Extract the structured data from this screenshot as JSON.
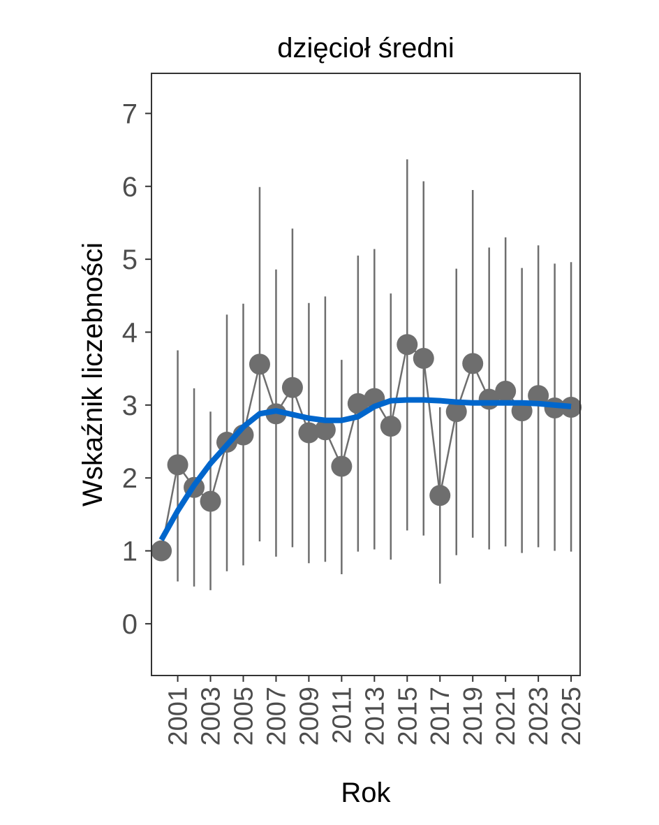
{
  "chart_data": {
    "type": "line",
    "title": "dzięcioł średni",
    "xlabel": "Rok",
    "ylabel": "Wskaźnik liczebności",
    "xlim": [
      1999.4,
      2025.55
    ],
    "ylim": [
      -0.71,
      7.55
    ],
    "yticks": [
      0,
      1,
      2,
      3,
      4,
      5,
      6,
      7
    ],
    "xticks": [
      2001,
      2003,
      2005,
      2007,
      2009,
      2011,
      2013,
      2015,
      2017,
      2019,
      2021,
      2023,
      2025
    ],
    "grid": false,
    "colors": {
      "points": "#6e6e6e",
      "trend": "#0066cc",
      "axis_text": "#4d4d4d"
    },
    "series": [
      {
        "name": "index",
        "x": [
          2000,
          2001,
          2002,
          2003,
          2004,
          2005,
          2006,
          2007,
          2008,
          2009,
          2010,
          2011,
          2012,
          2013,
          2014,
          2015,
          2016,
          2017,
          2018,
          2019,
          2020,
          2021,
          2022,
          2023,
          2024,
          2025
        ],
        "y": [
          1.0,
          2.18,
          1.87,
          1.68,
          2.49,
          2.59,
          3.56,
          2.88,
          3.24,
          2.62,
          2.66,
          2.16,
          3.02,
          3.09,
          2.71,
          3.83,
          3.64,
          1.76,
          2.91,
          3.57,
          3.08,
          3.19,
          2.92,
          3.13,
          2.96,
          2.97
        ],
        "upper": [
          1.0,
          3.75,
          3.23,
          2.91,
          4.24,
          4.39,
          5.99,
          4.86,
          5.42,
          4.4,
          4.49,
          3.62,
          5.05,
          5.14,
          4.53,
          6.37,
          6.07,
          2.97,
          4.87,
          5.95,
          5.16,
          5.3,
          4.88,
          5.19,
          4.94,
          4.96
        ],
        "lower": [
          1.0,
          0.58,
          0.51,
          0.46,
          0.72,
          0.8,
          1.13,
          0.92,
          1.05,
          0.83,
          0.85,
          0.68,
          0.99,
          1.02,
          0.88,
          1.28,
          1.21,
          0.55,
          0.94,
          1.18,
          1.02,
          1.06,
          0.97,
          1.05,
          1.0,
          0.99
        ]
      },
      {
        "name": "trend",
        "x": [
          2000,
          2001,
          2002,
          2003,
          2004,
          2005,
          2006,
          2007,
          2008,
          2009,
          2010,
          2011,
          2012,
          2013,
          2014,
          2015,
          2016,
          2017,
          2018,
          2019,
          2020,
          2021,
          2022,
          2023,
          2024,
          2025
        ],
        "y": [
          1.15,
          1.55,
          1.9,
          2.2,
          2.45,
          2.7,
          2.88,
          2.92,
          2.87,
          2.82,
          2.79,
          2.79,
          2.84,
          2.98,
          3.06,
          3.07,
          3.07,
          3.06,
          3.04,
          3.03,
          3.03,
          3.03,
          3.03,
          3.02,
          3.0,
          2.98
        ]
      }
    ]
  }
}
